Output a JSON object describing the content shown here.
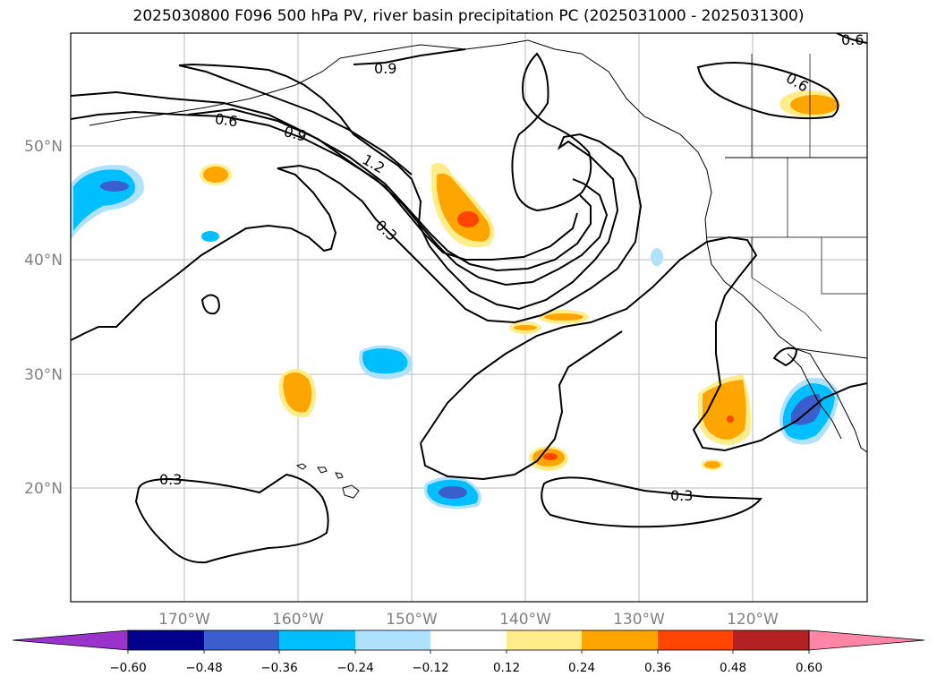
{
  "title": "2025030800 F096 500 hPa PV, river basin precipitation PC (2025031000 - 2025031300)",
  "map": {
    "lat_labels": [
      "50°N",
      "40°N",
      "30°N",
      "20°N"
    ],
    "lon_labels": [
      "170°W",
      "160°W",
      "150°W",
      "140°W",
      "130°W",
      "120°W"
    ],
    "pv_contour_labels": [
      "0.9",
      "0.6",
      "0.9",
      "1.2",
      "0.3",
      "0.3",
      "0.3",
      "0.6",
      "0.6"
    ]
  },
  "colorbar": {
    "labels": [
      "−0.60",
      "−0.48",
      "−0.36",
      "−0.24",
      "−0.12",
      "0.12",
      "0.24",
      "0.36",
      "0.48",
      "0.60"
    ],
    "colors": [
      "#9933cc",
      "#00008b",
      "#3a5fcd",
      "#00bfff",
      "#b0e2ff",
      "#ffffff",
      "#ffec8b",
      "#ffa500",
      "#ff4500",
      "#b22222",
      "#ff85a6"
    ]
  },
  "colors": {
    "frame": "#000000",
    "grid": "#bbbbbb",
    "tick_label": "#808080"
  }
}
